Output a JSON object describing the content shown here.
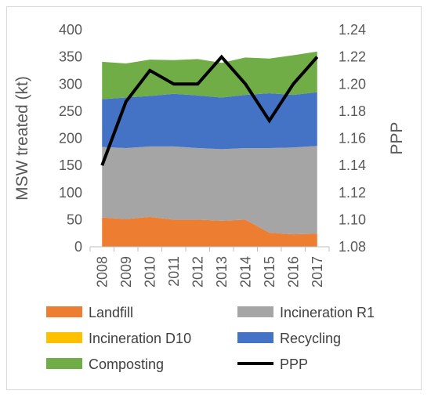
{
  "chart_data": {
    "type": "area",
    "x": [
      "2008",
      "2009",
      "2010",
      "2011",
      "2012",
      "2013",
      "2014",
      "2015",
      "2016",
      "2017"
    ],
    "series": [
      {
        "name": "Landfill",
        "kind": "stacked-area",
        "axis": "left",
        "color": "#ED7D31",
        "values": [
          54,
          51,
          55,
          50,
          50,
          48,
          50,
          26,
          23,
          24
        ]
      },
      {
        "name": "Incineration R1",
        "kind": "stacked-area",
        "axis": "left",
        "color": "#A5A5A5",
        "values": [
          130,
          131,
          130,
          135,
          132,
          132,
          132,
          156,
          160,
          162
        ]
      },
      {
        "name": "Incineration D10",
        "kind": "stacked-area",
        "axis": "left",
        "color": "#FFC000",
        "values": [
          0,
          0,
          0,
          0,
          0,
          0,
          0,
          0,
          0,
          0
        ]
      },
      {
        "name": "Recycling",
        "kind": "stacked-area",
        "axis": "left",
        "color": "#4472C4",
        "values": [
          88,
          93,
          93,
          97,
          97,
          95,
          98,
          101,
          97,
          99
        ]
      },
      {
        "name": "Composting",
        "kind": "stacked-area",
        "axis": "left",
        "color": "#70AD47",
        "values": [
          69,
          63,
          67,
          62,
          67,
          64,
          69,
          64,
          73,
          75
        ]
      },
      {
        "name": "PPP",
        "kind": "line",
        "axis": "right",
        "color": "#000000",
        "values": [
          1.14,
          1.187,
          1.21,
          1.2,
          1.2,
          1.22,
          1.2,
          1.173,
          1.2,
          1.22
        ]
      }
    ],
    "ylabel": "MSW treated (kt)",
    "y2label": "PPP",
    "ylim": [
      0,
      400
    ],
    "yticks": [
      "0",
      "50",
      "100",
      "150",
      "200",
      "250",
      "300",
      "350",
      "400"
    ],
    "y2lim": [
      1.08,
      1.24
    ],
    "y2ticks": [
      "1.08",
      "1.10",
      "1.12",
      "1.14",
      "1.16",
      "1.18",
      "1.20",
      "1.22",
      "1.24"
    ],
    "grid": false,
    "legend_position": "bottom"
  }
}
